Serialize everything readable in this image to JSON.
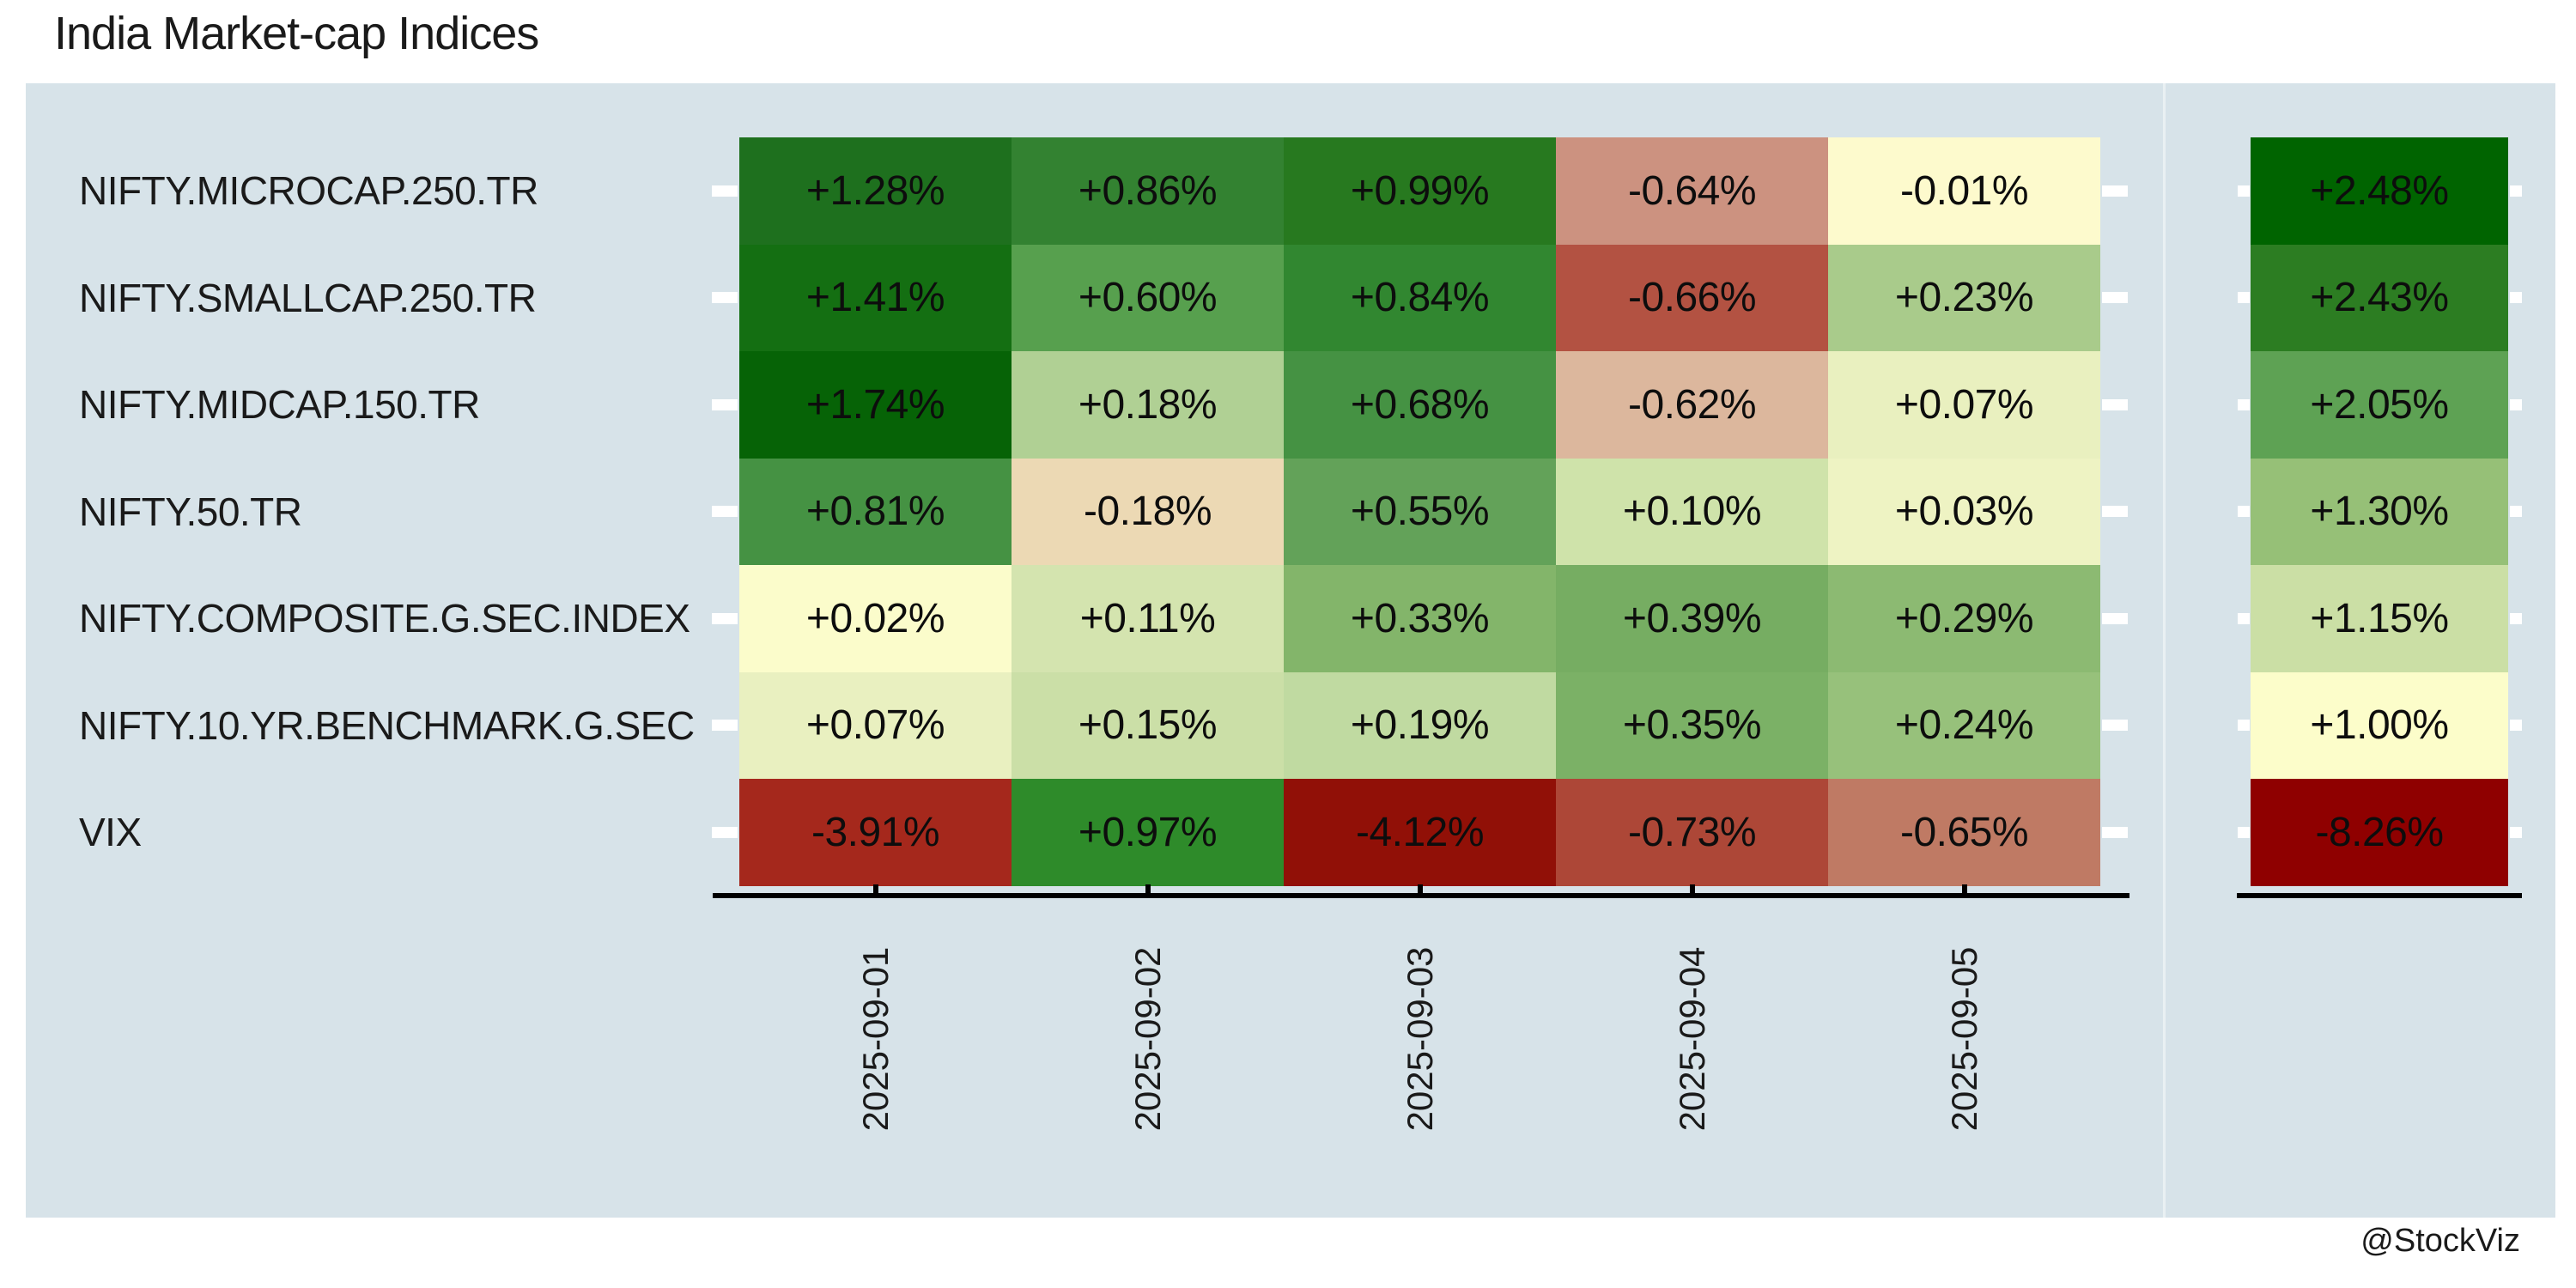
{
  "title": "India Market-cap Indices",
  "watermark": "@StockViz",
  "style": {
    "figure_bg": "#ffffff",
    "panel_bg": "#d7e3e9",
    "text_color": "#1a1a1a",
    "axis_color": "#000000",
    "tick_color": "#ffffff"
  },
  "chart_data": {
    "type": "heatmap",
    "title": "India Market-cap Indices",
    "colormap": "RdYlGn",
    "grid": false,
    "legend_position": "none",
    "value_format": "signed percent, two decimals",
    "columns": [
      "2025-09-01",
      "2025-09-02",
      "2025-09-03",
      "2025-09-04",
      "2025-09-05"
    ],
    "rows": [
      {
        "label": "NIFTY.MICROCAP.250.TR",
        "values": [
          1.28,
          0.86,
          0.99,
          -0.64,
          -0.01
        ],
        "display": [
          "+1.28%",
          "+0.86%",
          "+0.99%",
          "-0.64%",
          "-0.01%"
        ],
        "cell_colors": [
          "#1e701e",
          "#338231",
          "#27791f",
          "#cc9280",
          "#fdfacd"
        ],
        "summary_value": 2.48,
        "summary_display": "+2.48%",
        "summary_color": "#006400"
      },
      {
        "label": "NIFTY.SMALLCAP.250.TR",
        "values": [
          1.41,
          0.6,
          0.84,
          -0.66,
          0.23
        ],
        "display": [
          "+1.41%",
          "+0.60%",
          "+0.84%",
          "-0.66%",
          "+0.23%"
        ],
        "cell_colors": [
          "#146f12",
          "#57a04e",
          "#318730",
          "#b35242",
          "#a9cb8b"
        ],
        "summary_value": 2.43,
        "summary_display": "+2.43%",
        "summary_color": "#2c7d22"
      },
      {
        "label": "NIFTY.MIDCAP.150.TR",
        "values": [
          1.74,
          0.18,
          0.68,
          -0.62,
          0.07
        ],
        "display": [
          "+1.74%",
          "+0.18%",
          "+0.68%",
          "-0.62%",
          "+0.07%"
        ],
        "cell_colors": [
          "#066306",
          "#b0d094",
          "#459243",
          "#dcb79d",
          "#e9f0bf"
        ],
        "summary_value": 2.05,
        "summary_display": "+2.05%",
        "summary_color": "#5ea254"
      },
      {
        "label": "NIFTY.50.TR",
        "values": [
          0.81,
          -0.18,
          0.55,
          0.1,
          0.03
        ],
        "display": [
          "+0.81%",
          "-0.18%",
          "+0.55%",
          "+0.10%",
          "+0.03%"
        ],
        "cell_colors": [
          "#459243",
          "#ecd9b4",
          "#63a259",
          "#cfe3aa",
          "#eef3c3"
        ],
        "summary_value": 1.3,
        "summary_display": "+1.30%",
        "summary_color": "#96c077"
      },
      {
        "label": "NIFTY.COMPOSITE.G.SEC.INDEX",
        "values": [
          0.02,
          0.11,
          0.33,
          0.39,
          0.29
        ],
        "display": [
          "+0.02%",
          "+0.11%",
          "+0.33%",
          "+0.39%",
          "+0.29%"
        ],
        "cell_colors": [
          "#fbfccb",
          "#d4e4af",
          "#83b56a",
          "#76ad62",
          "#8cba72"
        ],
        "summary_value": 1.15,
        "summary_display": "+1.15%",
        "summary_color": "#cbdfa5"
      },
      {
        "label": "NIFTY.10.YR.BENCHMARK.G.SEC",
        "values": [
          0.07,
          0.15,
          0.19,
          0.35,
          0.24
        ],
        "display": [
          "+0.07%",
          "+0.15%",
          "+0.19%",
          "+0.35%",
          "+0.24%"
        ],
        "cell_colors": [
          "#e9f0c0",
          "#cbdfa7",
          "#c0daa1",
          "#7bb166",
          "#97c17b"
        ],
        "summary_value": 1.0,
        "summary_display": "+1.00%",
        "summary_color": "#fcfdca"
      },
      {
        "label": "VIX",
        "values": [
          -3.91,
          0.97,
          -4.12,
          -0.73,
          -0.65
        ],
        "display": [
          "-3.91%",
          "+0.97%",
          "-4.12%",
          "-0.73%",
          "-0.65%"
        ],
        "cell_colors": [
          "#a5281c",
          "#2e8b2a",
          "#911007",
          "#ad4737",
          "#bf7a64"
        ],
        "summary_value": -8.26,
        "summary_display": "-8.26%",
        "summary_color": "#8f0000"
      }
    ]
  }
}
